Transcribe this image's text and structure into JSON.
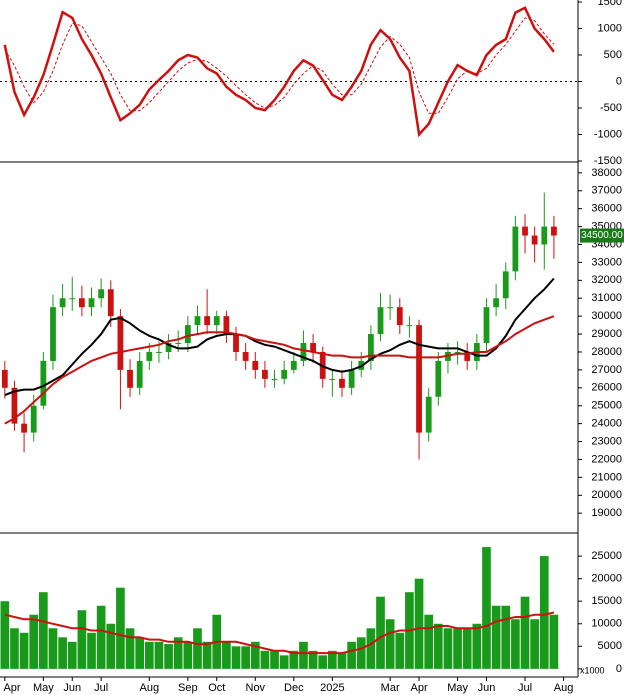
{
  "chart_data": [
    {
      "type": "line",
      "xlim": [
        -0.5,
        59.5
      ],
      "ylim": [
        -1500,
        1500
      ],
      "yticks": [
        1500,
        1000,
        500,
        0,
        -500,
        -1000,
        -1500
      ],
      "zero_line": true,
      "series": [
        {
          "color": "#cc1111",
          "style": "solid",
          "values": [
            690,
            -200,
            -630,
            -300,
            120,
            700,
            1310,
            1200,
            800,
            500,
            150,
            -300,
            -730,
            -600,
            -440,
            -150,
            30,
            200,
            400,
            500,
            450,
            250,
            150,
            -100,
            -250,
            -350,
            -500,
            -540,
            -350,
            -100,
            200,
            400,
            300,
            30,
            -250,
            -350,
            -100,
            200,
            700,
            970,
            800,
            450,
            200,
            -1000,
            -800,
            -400,
            0,
            310,
            200,
            120,
            500,
            690,
            800,
            1300,
            1390,
            1000,
            800,
            560
          ]
        },
        {
          "color": "#cc1111",
          "style": "dashed",
          "values": [
            600,
            300,
            -100,
            -400,
            -200,
            200,
            700,
            1100,
            1050,
            750,
            450,
            150,
            -250,
            -550,
            -550,
            -400,
            -200,
            0,
            200,
            350,
            420,
            380,
            250,
            100,
            -80,
            -250,
            -400,
            -500,
            -450,
            -300,
            -50,
            150,
            300,
            200,
            -50,
            -250,
            -250,
            -50,
            300,
            650,
            850,
            700,
            450,
            -200,
            -600,
            -600,
            -300,
            50,
            200,
            150,
            250,
            500,
            700,
            950,
            1200,
            1150,
            900,
            700
          ]
        }
      ]
    },
    {
      "type": "candlestick",
      "xlim": [
        -0.5,
        59.5
      ],
      "ylim": [
        17950,
        38550
      ],
      "yticks": [
        19000,
        20000,
        21000,
        22000,
        23000,
        24000,
        25000,
        26000,
        27000,
        28000,
        29000,
        30000,
        31000,
        32000,
        33000,
        34000,
        35000,
        36000,
        37000,
        38000
      ],
      "up_color": "#1a9a1a",
      "down_color": "#cc1111",
      "open": [
        27000,
        26000,
        24000,
        23500,
        25000,
        27500,
        30500,
        31000,
        31000,
        30500,
        31000,
        31500,
        30000,
        27000,
        26000,
        27500,
        28000,
        28000,
        28500,
        28500,
        29500,
        30000,
        29500,
        30000,
        29000,
        28000,
        27500,
        27000,
        26500,
        26500,
        27000,
        27500,
        28500,
        28000,
        26500,
        26500,
        26000,
        27000,
        27500,
        29000,
        30500,
        30500,
        29500,
        29500,
        23500,
        25500,
        27500,
        28000,
        28000,
        27500,
        28500,
        30500,
        31000,
        32500,
        35000,
        34500,
        34000,
        35000
      ],
      "high": [
        27500,
        26400,
        24600,
        25600,
        28000,
        31200,
        31800,
        32200,
        31700,
        31600,
        32100,
        32000,
        30400,
        27600,
        28000,
        28500,
        28600,
        29000,
        29200,
        30000,
        30600,
        31500,
        30300,
        30300,
        29400,
        28500,
        28000,
        27500,
        27000,
        27500,
        28000,
        29200,
        29000,
        28300,
        27000,
        27000,
        27500,
        28000,
        29500,
        31300,
        31200,
        31000,
        30000,
        29800,
        26000,
        28000,
        28500,
        28600,
        28500,
        29000,
        31000,
        31800,
        33000,
        35600,
        35700,
        35000,
        36900,
        35600
      ],
      "low": [
        25400,
        23600,
        22400,
        23000,
        24800,
        27000,
        30000,
        30300,
        30000,
        30000,
        30500,
        29400,
        24800,
        25500,
        25600,
        27000,
        27400,
        27600,
        28000,
        28000,
        29000,
        29000,
        29000,
        28500,
        27500,
        27000,
        26500,
        26000,
        26000,
        26200,
        26800,
        27200,
        27400,
        26000,
        25500,
        25500,
        25600,
        26600,
        27000,
        28600,
        29800,
        29000,
        28800,
        22000,
        23000,
        25000,
        26800,
        27300,
        27000,
        27000,
        28000,
        30000,
        30400,
        32000,
        33500,
        33000,
        32600,
        33200
      ],
      "close": [
        26000,
        24000,
        23500,
        25000,
        27500,
        30500,
        31000,
        31000,
        30500,
        31000,
        31500,
        30000,
        27000,
        26000,
        27500,
        28000,
        28000,
        28500,
        28500,
        29500,
        30000,
        29500,
        30000,
        29000,
        28000,
        27500,
        27000,
        26500,
        26500,
        27000,
        27500,
        28500,
        28000,
        26500,
        26500,
        26000,
        27000,
        27500,
        29000,
        30500,
        30500,
        29500,
        29500,
        23500,
        25500,
        27500,
        28000,
        28000,
        27500,
        28500,
        30500,
        31000,
        32500,
        35000,
        34500,
        34000,
        35000,
        34500
      ],
      "overlays": [
        {
          "color": "#000000",
          "values": [
            25600,
            25800,
            25900,
            25900,
            26100,
            26400,
            26700,
            27300,
            27900,
            28400,
            29000,
            29800,
            29900,
            29600,
            29200,
            28900,
            28700,
            28400,
            28200,
            28200,
            28300,
            28700,
            28900,
            29000,
            29000,
            28900,
            28600,
            28400,
            28300,
            28100,
            27900,
            27700,
            27500,
            27200,
            27000,
            26900,
            27000,
            27200,
            27600,
            27900,
            28100,
            28400,
            28600,
            28400,
            28300,
            28200,
            28200,
            28200,
            28000,
            27800,
            27800,
            28200,
            28900,
            29800,
            30400,
            31000,
            31500,
            32100
          ]
        },
        {
          "color": "#cc1111",
          "values": [
            24000,
            24300,
            24700,
            25200,
            25700,
            26200,
            26600,
            26900,
            27200,
            27500,
            27700,
            27900,
            28000,
            28100,
            28200,
            28300,
            28400,
            28600,
            28700,
            28900,
            29000,
            29100,
            29100,
            29100,
            29000,
            28900,
            28700,
            28600,
            28500,
            28400,
            28200,
            28100,
            28000,
            27900,
            27800,
            27800,
            27700,
            27700,
            27800,
            27800,
            27800,
            27800,
            27700,
            27700,
            27700,
            27700,
            27800,
            27900,
            27900,
            28000,
            28000,
            28300,
            28600,
            29000,
            29300,
            29600,
            29800,
            30000
          ]
        }
      ],
      "last_price": {
        "value": 34500,
        "label": "34500.00"
      }
    },
    {
      "type": "bar",
      "xlim": [
        -0.5,
        59.5
      ],
      "ylim": [
        -1800,
        29900
      ],
      "yticks": [
        0,
        5000,
        10000,
        15000,
        20000,
        25000
      ],
      "unit_label": "x1000",
      "color": "#1a9a1a",
      "values": [
        15000,
        9000,
        8000,
        12000,
        17000,
        9000,
        7000,
        6000,
        13000,
        8000,
        14000,
        10000,
        18000,
        9000,
        7000,
        6000,
        6000,
        5500,
        7000,
        6000,
        9000,
        6000,
        12000,
        6000,
        5000,
        5000,
        6000,
        4000,
        4000,
        3000,
        4000,
        6000,
        4000,
        3000,
        4000,
        3500,
        6000,
        7000,
        9000,
        16000,
        11000,
        8000,
        17000,
        20000,
        12000,
        10000,
        9000,
        9000,
        9000,
        10000,
        27000,
        14000,
        14000,
        11000,
        16000,
        11000,
        25000,
        12000
      ],
      "overlays": [
        {
          "color": "#cc1111",
          "values": [
            12000,
            11500,
            11000,
            11000,
            10500,
            10000,
            9500,
            9000,
            9000,
            8500,
            8500,
            8000,
            7500,
            7000,
            7000,
            6500,
            6500,
            6000,
            6000,
            6000,
            5500,
            5500,
            6000,
            6000,
            6000,
            5500,
            5000,
            4500,
            4000,
            4000,
            3500,
            3500,
            3500,
            3500,
            3500,
            3500,
            4000,
            4500,
            5500,
            7000,
            8000,
            8500,
            8500,
            9000,
            9000,
            9500,
            9500,
            9000,
            9000,
            9000,
            9500,
            10500,
            11000,
            11500,
            11500,
            12000,
            12000,
            12500
          ]
        }
      ],
      "xticks": [
        {
          "value": 0,
          "label": "Apr"
        },
        {
          "value": 4,
          "label": "May"
        },
        {
          "value": 7,
          "label": "Jun"
        },
        {
          "value": 10,
          "label": "Jul"
        },
        {
          "value": 15,
          "label": "Aug"
        },
        {
          "value": 19,
          "label": "Sep"
        },
        {
          "value": 22,
          "label": "Oct"
        },
        {
          "value": 26,
          "label": "Nov"
        },
        {
          "value": 30,
          "label": "Dec"
        },
        {
          "value": 34,
          "label": "2025"
        },
        {
          "value": 40,
          "label": "Mar"
        },
        {
          "value": 43,
          "label": "Apr"
        },
        {
          "value": 47,
          "label": "May"
        },
        {
          "value": 50,
          "label": "Jun"
        },
        {
          "value": 54,
          "label": "Jul"
        },
        {
          "value": 58,
          "label": "Aug"
        }
      ]
    }
  ]
}
